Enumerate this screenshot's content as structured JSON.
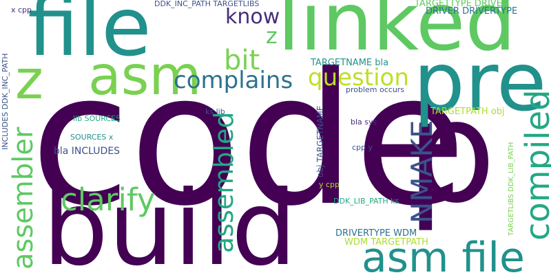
{
  "palette": {
    "dark_purple": "#440154",
    "indigo": "#3b528b",
    "teal": "#21918c",
    "green": "#5ec962",
    "yellow_green": "#addc30"
  },
  "words": [
    {
      "id": "code",
      "text": "code",
      "color": "#440154"
    },
    {
      "id": "p",
      "text": "p",
      "color": "#440154"
    },
    {
      "id": "build",
      "text": "build",
      "color": "#440154"
    },
    {
      "id": "file",
      "text": "file",
      "color": "#21918c"
    },
    {
      "id": "linked",
      "text": "linked",
      "color": "#5ec962"
    },
    {
      "id": "pre",
      "text": "pre",
      "color": "#21918c"
    },
    {
      "id": "asm",
      "text": "asm",
      "color": "#7ad151"
    },
    {
      "id": "z_left",
      "text": "z",
      "color": "#7ad151"
    },
    {
      "id": "asm_file",
      "text": "asm file",
      "color": "#21918c"
    },
    {
      "id": "compiled",
      "text": "compiled",
      "color": "#22a884"
    },
    {
      "id": "assembler",
      "text": "assembler",
      "color": "#5ec962"
    },
    {
      "id": "assembled",
      "text": "assembled",
      "color": "#22a884"
    },
    {
      "id": "clarify",
      "text": "clarify",
      "color": "#5ec962"
    },
    {
      "id": "nmake",
      "text": "NMAKE",
      "color": "#3b528b"
    },
    {
      "id": "bit",
      "text": "bit",
      "color": "#7ad151"
    },
    {
      "id": "complains",
      "text": "complains",
      "color": "#2c728e"
    },
    {
      "id": "question",
      "text": "question",
      "color": "#bddf26"
    },
    {
      "id": "know",
      "text": "know",
      "color": "#472d7b"
    },
    {
      "id": "z_small",
      "text": "z",
      "color": "#5ec962"
    },
    {
      "id": "targettype_driver",
      "text": "TARGETTYPE DRIVER",
      "color": "#5ec962"
    },
    {
      "id": "driver_drivertype",
      "text": "DRIVER DRIVERTYPE",
      "color": "#2c728e"
    },
    {
      "id": "targetname_bla",
      "text": "TARGETNAME bla",
      "color": "#21918c"
    },
    {
      "id": "problem_occurs",
      "text": "problem occurs",
      "color": "#3b528b"
    },
    {
      "id": "targetpath_obj",
      "text": "TARGETPATH obj",
      "color": "#addc30"
    },
    {
      "id": "ks_lib",
      "text": "ks lib",
      "color": "#3b528b"
    },
    {
      "id": "lib_sources",
      "text": "lib SOURCES",
      "color": "#22a884"
    },
    {
      "id": "sources_x",
      "text": "SOURCES x",
      "color": "#21918c"
    },
    {
      "id": "bla_includes",
      "text": "bla INCLUDES",
      "color": "#3b528b"
    },
    {
      "id": "bla_sys",
      "text": "bla sys",
      "color": "#472d7b"
    },
    {
      "id": "cpp_y",
      "text": "cpp y",
      "color": "#3b528b"
    },
    {
      "id": "y_cpp",
      "text": "y cpp",
      "color": "#addc30"
    },
    {
      "id": "ddk_lib_path_ks",
      "text": "DDK_LIB_PATH ks",
      "color": "#22a884"
    },
    {
      "id": "drivertype_wdm",
      "text": "DRIVERTYPE WDM",
      "color": "#2c728e"
    },
    {
      "id": "wdm_targetpath",
      "text": "WDM TARGETPATH",
      "color": "#addc30"
    },
    {
      "id": "x_cpp",
      "text": "x cpp",
      "color": "#472d7b"
    },
    {
      "id": "ddk_inc_path_targetlibs",
      "text": "DDK_INC_PATH TARGETLIBS",
      "color": "#3b528b"
    },
    {
      "id": "includes_ddk_inc_path",
      "text": "INCLUDES DDK_INC_PATH",
      "color": "#3b528b"
    },
    {
      "id": "obj_targetname",
      "text": "obj TARGETNAME",
      "color": "#3b528b"
    },
    {
      "id": "targetlibs_ddk_lib_path",
      "text": "TARGETLIBS DDK_LIB_PATH",
      "color": "#7ad151"
    }
  ]
}
